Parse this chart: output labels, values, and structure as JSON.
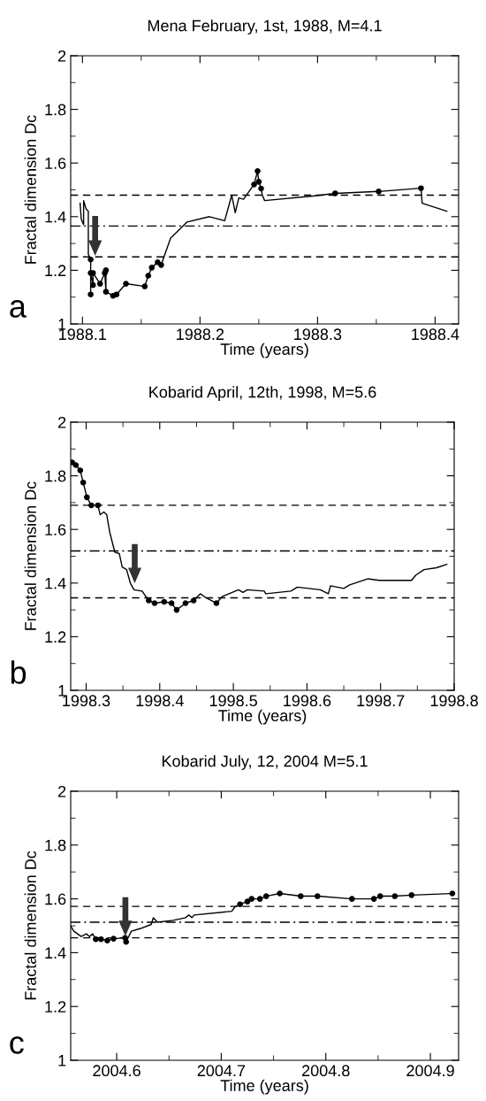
{
  "chart_data": [
    {
      "type": "line",
      "title": "Mena February, 1st, 1988, M=4.1",
      "xlabel": "Time (years)",
      "ylabel": "Fractal dimension Dc",
      "annotations": [
        "a"
      ],
      "xlim": [
        1988.09,
        1988.42
      ],
      "xticks": [
        1988.1,
        1988.2,
        1988.3,
        1988.4
      ],
      "ylim": [
        1,
        2
      ],
      "yticks": [
        1,
        1.2,
        1.4,
        1.6,
        1.8,
        2
      ],
      "grid": false,
      "legend": false,
      "ref_lines": [
        {
          "axis": "y",
          "value": 1.48,
          "line_style": "dashed",
          "color": "#000000"
        },
        {
          "axis": "y",
          "value": 1.365,
          "line_style": "dashdot",
          "color": "#000000"
        },
        {
          "axis": "y",
          "value": 1.25,
          "line_style": "dashed",
          "color": "#000000"
        }
      ],
      "series": [
        {
          "color": "#000000",
          "marker": "none",
          "x": [
            1988.098,
            1988.099,
            1988.101,
            1988.101,
            1988.103,
            1988.105,
            1988.105,
            1988.107,
            1988.107,
            1988.107,
            1988.109,
            1988.109,
            1988.115,
            1988.119,
            1988.12,
            1988.12,
            1988.12,
            1988.126,
            1988.129,
            1988.137,
            1988.153,
            1988.156,
            1988.159,
            1988.164,
            1988.167,
            1988.175,
            1988.189,
            1988.208,
            1988.221,
            1988.227,
            1988.23,
            1988.233,
            1988.237,
            1988.246,
            1988.249,
            1988.25,
            1988.252,
            1988.253,
            1988.255,
            1988.296,
            1988.315,
            1988.352,
            1988.388,
            1988.389,
            1988.41
          ],
          "values": [
            1.45,
            1.39,
            1.37,
            1.46,
            1.43,
            1.42,
            1.26,
            1.24,
            1.11,
            1.19,
            1.145,
            1.19,
            1.15,
            1.19,
            1.12,
            1.2,
            1.12,
            1.105,
            1.11,
            1.15,
            1.14,
            1.18,
            1.21,
            1.23,
            1.22,
            1.32,
            1.38,
            1.4,
            1.385,
            1.48,
            1.415,
            1.47,
            1.465,
            1.52,
            1.57,
            1.53,
            1.505,
            1.48,
            1.46,
            1.477,
            1.487,
            1.494,
            1.506,
            1.45,
            1.42
          ]
        },
        {
          "type": "scatter",
          "color": "#000000",
          "marker": "circle",
          "x": [
            1988.107,
            1988.107,
            1988.107,
            1988.109,
            1988.109,
            1988.115,
            1988.119,
            1988.12,
            1988.12,
            1988.126,
            1988.129,
            1988.137,
            1988.153,
            1988.156,
            1988.159,
            1988.164,
            1988.167,
            1988.246,
            1988.249,
            1988.25,
            1988.252,
            1988.315,
            1988.352,
            1988.388
          ],
          "values": [
            1.24,
            1.11,
            1.19,
            1.145,
            1.19,
            1.15,
            1.19,
            1.12,
            1.2,
            1.105,
            1.11,
            1.15,
            1.14,
            1.18,
            1.21,
            1.23,
            1.22,
            1.52,
            1.57,
            1.53,
            1.505,
            1.487,
            1.494,
            1.506
          ]
        }
      ]
    },
    {
      "type": "line",
      "title": "Kobarid April, 12th, 1998, M=5.6",
      "xlabel": "Time (years)",
      "ylabel": "Fractal dimension Dc",
      "annotations": [
        "b"
      ],
      "xlim": [
        1998.279,
        1998.8
      ],
      "xticks": [
        1998.3,
        1998.4,
        1998.5,
        1998.6,
        1998.7,
        1998.8
      ],
      "ylim": [
        1,
        2
      ],
      "yticks": [
        1,
        1.2,
        1.4,
        1.6,
        1.8,
        2
      ],
      "grid": false,
      "legend": false,
      "ref_lines": [
        {
          "axis": "y",
          "value": 1.69,
          "line_style": "dashed",
          "color": "#000000"
        },
        {
          "axis": "y",
          "value": 1.52,
          "line_style": "dashdot",
          "color": "#000000"
        },
        {
          "axis": "y",
          "value": 1.345,
          "line_style": "dashed",
          "color": "#000000"
        }
      ],
      "series": [
        {
          "color": "#000000",
          "marker": "none",
          "x": [
            1998.281,
            1998.286,
            1998.292,
            1998.296,
            1998.301,
            1998.307,
            1998.316,
            1998.319,
            1998.324,
            1998.328,
            1998.332,
            1998.339,
            1998.345,
            1998.349,
            1998.355,
            1998.36,
            1998.365,
            1998.376,
            1998.385,
            1998.393,
            1998.406,
            1998.416,
            1998.423,
            1998.435,
            1998.446,
            1998.455,
            1998.463,
            1998.477,
            1998.485,
            1998.507,
            1998.513,
            1998.519,
            1998.542,
            1998.544,
            1998.578,
            1998.587,
            1998.618,
            1998.629,
            1998.632,
            1998.65,
            1998.658,
            1998.683,
            1998.698,
            1998.742,
            1998.748,
            1998.759,
            1998.776,
            1998.79
          ],
          "values": [
            1.85,
            1.84,
            1.82,
            1.775,
            1.72,
            1.69,
            1.69,
            1.655,
            1.665,
            1.655,
            1.59,
            1.515,
            1.51,
            1.46,
            1.45,
            1.4,
            1.375,
            1.37,
            1.335,
            1.325,
            1.33,
            1.325,
            1.3,
            1.325,
            1.335,
            1.36,
            1.345,
            1.325,
            1.35,
            1.375,
            1.365,
            1.375,
            1.37,
            1.36,
            1.37,
            1.385,
            1.375,
            1.36,
            1.39,
            1.38,
            1.393,
            1.416,
            1.41,
            1.41,
            1.43,
            1.45,
            1.457,
            1.47
          ]
        },
        {
          "type": "scatter",
          "color": "#000000",
          "marker": "circle",
          "x": [
            1998.281,
            1998.286,
            1998.292,
            1998.296,
            1998.301,
            1998.307,
            1998.316,
            1998.385,
            1998.393,
            1998.406,
            1998.416,
            1998.423,
            1998.435,
            1998.446,
            1998.477
          ],
          "values": [
            1.85,
            1.84,
            1.82,
            1.775,
            1.72,
            1.69,
            1.69,
            1.335,
            1.325,
            1.33,
            1.325,
            1.3,
            1.325,
            1.335,
            1.325
          ]
        }
      ]
    },
    {
      "type": "line",
      "title": "Kobarid July, 12, 2004 M=5.1",
      "xlabel": "Time (years)",
      "ylabel": "Fractal dimension Dc",
      "annotations": [
        "c"
      ],
      "xlim": [
        2004.556,
        2004.927
      ],
      "xticks": [
        2004.6,
        2004.7,
        2004.8,
        2004.9
      ],
      "ylim": [
        1,
        2
      ],
      "yticks": [
        1,
        1.2,
        1.4,
        1.6,
        1.8,
        2
      ],
      "grid": false,
      "legend": false,
      "ref_lines": [
        {
          "axis": "y",
          "value": 1.572,
          "line_style": "dashed",
          "color": "#000000"
        },
        {
          "axis": "y",
          "value": 1.513,
          "line_style": "dashdot",
          "color": "#000000"
        },
        {
          "axis": "y",
          "value": 1.455,
          "line_style": "dashed",
          "color": "#000000"
        }
      ],
      "series": [
        {
          "color": "#000000",
          "marker": "none",
          "x": [
            2004.556,
            2004.559,
            2004.566,
            2004.571,
            2004.574,
            2004.577,
            2004.58,
            2004.585,
            2004.591,
            2004.597,
            2004.608,
            2004.609,
            2004.614,
            2004.623,
            2004.633,
            2004.635,
            2004.639,
            2004.654,
            2004.666,
            2004.669,
            2004.672,
            2004.674,
            2004.71,
            2004.713,
            2004.718,
            2004.725,
            2004.729,
            2004.737,
            2004.743,
            2004.756,
            2004.776,
            2004.792,
            2004.825,
            2004.846,
            2004.852,
            2004.866,
            2004.882,
            2004.921
          ],
          "values": [
            1.5,
            1.48,
            1.46,
            1.47,
            1.46,
            1.47,
            1.45,
            1.45,
            1.445,
            1.452,
            1.455,
            1.44,
            1.48,
            1.49,
            1.505,
            1.53,
            1.513,
            1.52,
            1.53,
            1.54,
            1.53,
            1.54,
            1.554,
            1.57,
            1.58,
            1.59,
            1.6,
            1.6,
            1.61,
            1.62,
            1.61,
            1.61,
            1.6,
            1.6,
            1.61,
            1.61,
            1.614,
            1.62
          ]
        },
        {
          "type": "scatter",
          "color": "#000000",
          "marker": "circle",
          "x": [
            2004.58,
            2004.585,
            2004.591,
            2004.597,
            2004.608,
            2004.609,
            2004.718,
            2004.725,
            2004.729,
            2004.737,
            2004.743,
            2004.756,
            2004.776,
            2004.792,
            2004.825,
            2004.846,
            2004.852,
            2004.866,
            2004.882,
            2004.921
          ],
          "values": [
            1.45,
            1.45,
            1.445,
            1.452,
            1.455,
            1.44,
            1.58,
            1.59,
            1.6,
            1.6,
            1.61,
            1.62,
            1.61,
            1.61,
            1.6,
            1.6,
            1.61,
            1.61,
            1.614,
            1.62
          ]
        }
      ]
    }
  ]
}
